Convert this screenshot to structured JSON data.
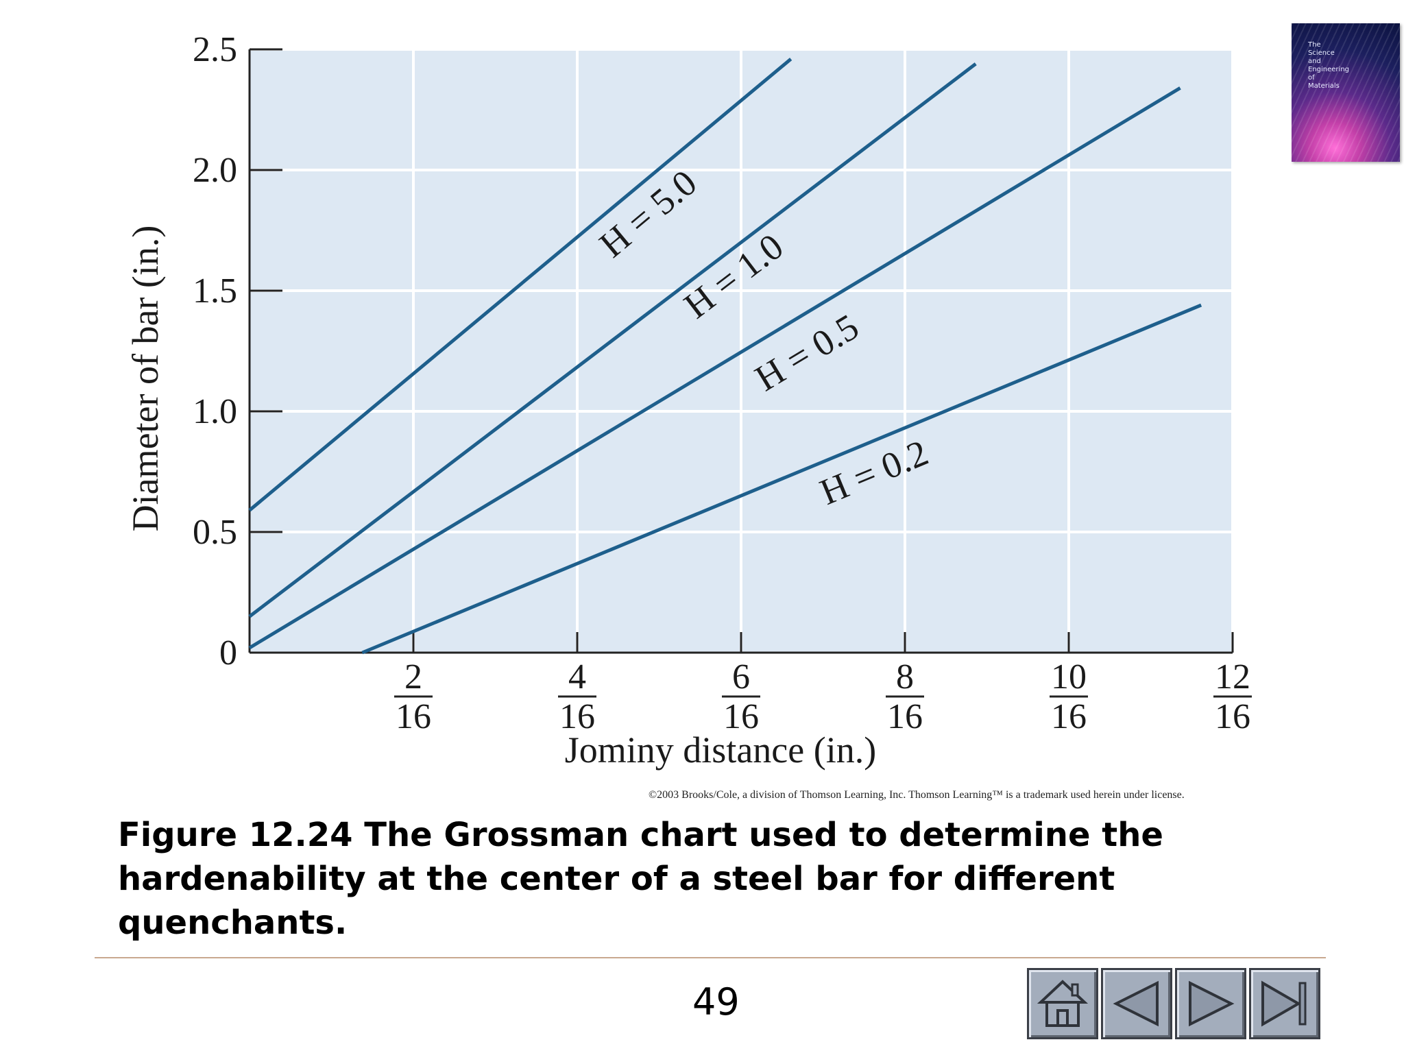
{
  "chart_data": {
    "type": "line",
    "xlabel": "Jominy distance (in.)",
    "ylabel": "Diameter of bar (in.)",
    "xlim": [
      0,
      0.75
    ],
    "ylim": [
      0,
      2.5
    ],
    "x_ticks": [
      {
        "value": 0.125,
        "num": "2",
        "den": "16"
      },
      {
        "value": 0.25,
        "num": "4",
        "den": "16"
      },
      {
        "value": 0.375,
        "num": "6",
        "den": "16"
      },
      {
        "value": 0.5,
        "num": "8",
        "den": "16"
      },
      {
        "value": 0.625,
        "num": "10",
        "den": "16"
      },
      {
        "value": 0.75,
        "num": "12",
        "den": "16"
      }
    ],
    "y_ticks": [
      {
        "value": 0,
        "label": "0"
      },
      {
        "value": 0.5,
        "label": "0.5"
      },
      {
        "value": 1.0,
        "label": "1.0"
      },
      {
        "value": 1.5,
        "label": "1.5"
      },
      {
        "value": 2.0,
        "label": "2.0"
      },
      {
        "value": 2.5,
        "label": "2.5"
      }
    ],
    "grid": true,
    "series": [
      {
        "name": "H = 5.0",
        "x": [
          0,
          0.413
        ],
        "y": [
          0.59,
          2.46
        ]
      },
      {
        "name": "H = 1.0",
        "x": [
          0,
          0.554
        ],
        "y": [
          0.15,
          2.44
        ]
      },
      {
        "name": "H = 0.5",
        "x": [
          0,
          0.71
        ],
        "y": [
          0.02,
          2.34
        ]
      },
      {
        "name": "H = 0.2",
        "x": [
          0.086,
          0.726
        ],
        "y": [
          0.0,
          1.44
        ]
      }
    ],
    "series_labels": [
      {
        "text": "H = 5.0",
        "x": 0.31,
        "y": 1.78
      },
      {
        "text": "H = 1.0",
        "x": 0.375,
        "y": 1.52
      },
      {
        "text": "H = 0.5",
        "x": 0.43,
        "y": 1.2
      },
      {
        "text": "H = 0.2",
        "x": 0.48,
        "y": 0.7
      }
    ],
    "colors": {
      "line": "#1e5f8c",
      "plot_background": "#dde8f3",
      "grid": "#ffffff"
    }
  },
  "copyright": "©2003 Brooks/Cole, a division of Thomson Learning, Inc.  Thomson Learning™ is a trademark used herein under license.",
  "caption": "Figure 12.24  The Grossman chart used to determine the hardenability at the center of a steel bar for different quenchants.",
  "book_cover": {
    "lines": [
      "The",
      "Science",
      "and",
      "Engineering",
      "of",
      "Materials"
    ]
  },
  "page_number": "49",
  "nav": [
    {
      "name": "home",
      "icon": "home-icon"
    },
    {
      "name": "previous",
      "icon": "triangle-left-icon"
    },
    {
      "name": "next",
      "icon": "triangle-right-icon"
    },
    {
      "name": "last",
      "icon": "skip-end-icon"
    }
  ]
}
